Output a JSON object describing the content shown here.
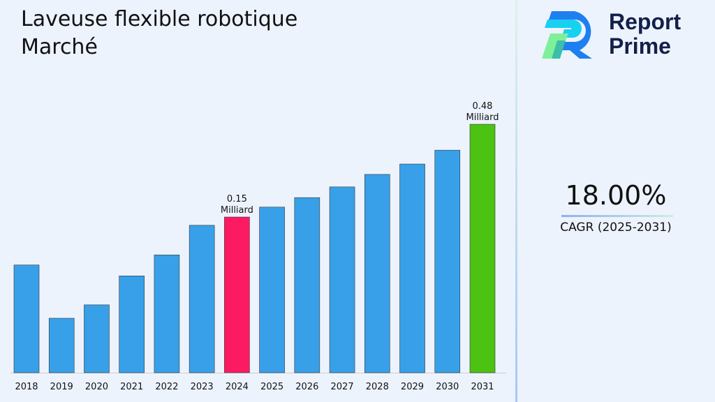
{
  "title": "Laveuse flexible robotique Marché",
  "logo": {
    "line1": "Report",
    "line2": "Prime"
  },
  "cagr": {
    "value": "18.00%",
    "label": "CAGR (2025-2031)"
  },
  "colors": {
    "bar": "#38a0e8",
    "highlight_2024": "#fc1a62",
    "highlight_2031": "#4cc213",
    "text": "#111111"
  },
  "chart_data": {
    "type": "bar",
    "title": "Laveuse flexible robotique Marché",
    "categories": [
      "2018",
      "2019",
      "2020",
      "2021",
      "2022",
      "2023",
      "2024",
      "2025",
      "2026",
      "2027",
      "2028",
      "2029",
      "2030",
      "2031"
    ],
    "values": [
      0.06,
      0.011,
      0.019,
      0.046,
      0.075,
      0.131,
      0.15,
      0.175,
      0.201,
      0.233,
      0.274,
      0.311,
      0.365,
      0.48
    ],
    "unit": "Milliard",
    "data_labels": [
      {
        "category": "2024",
        "value": "0.15",
        "unit": "Milliard"
      },
      {
        "category": "2031",
        "value": "0.48",
        "unit": "Milliard"
      }
    ],
    "xlabel": "",
    "ylabel": "",
    "grid": false,
    "legend": "none"
  }
}
